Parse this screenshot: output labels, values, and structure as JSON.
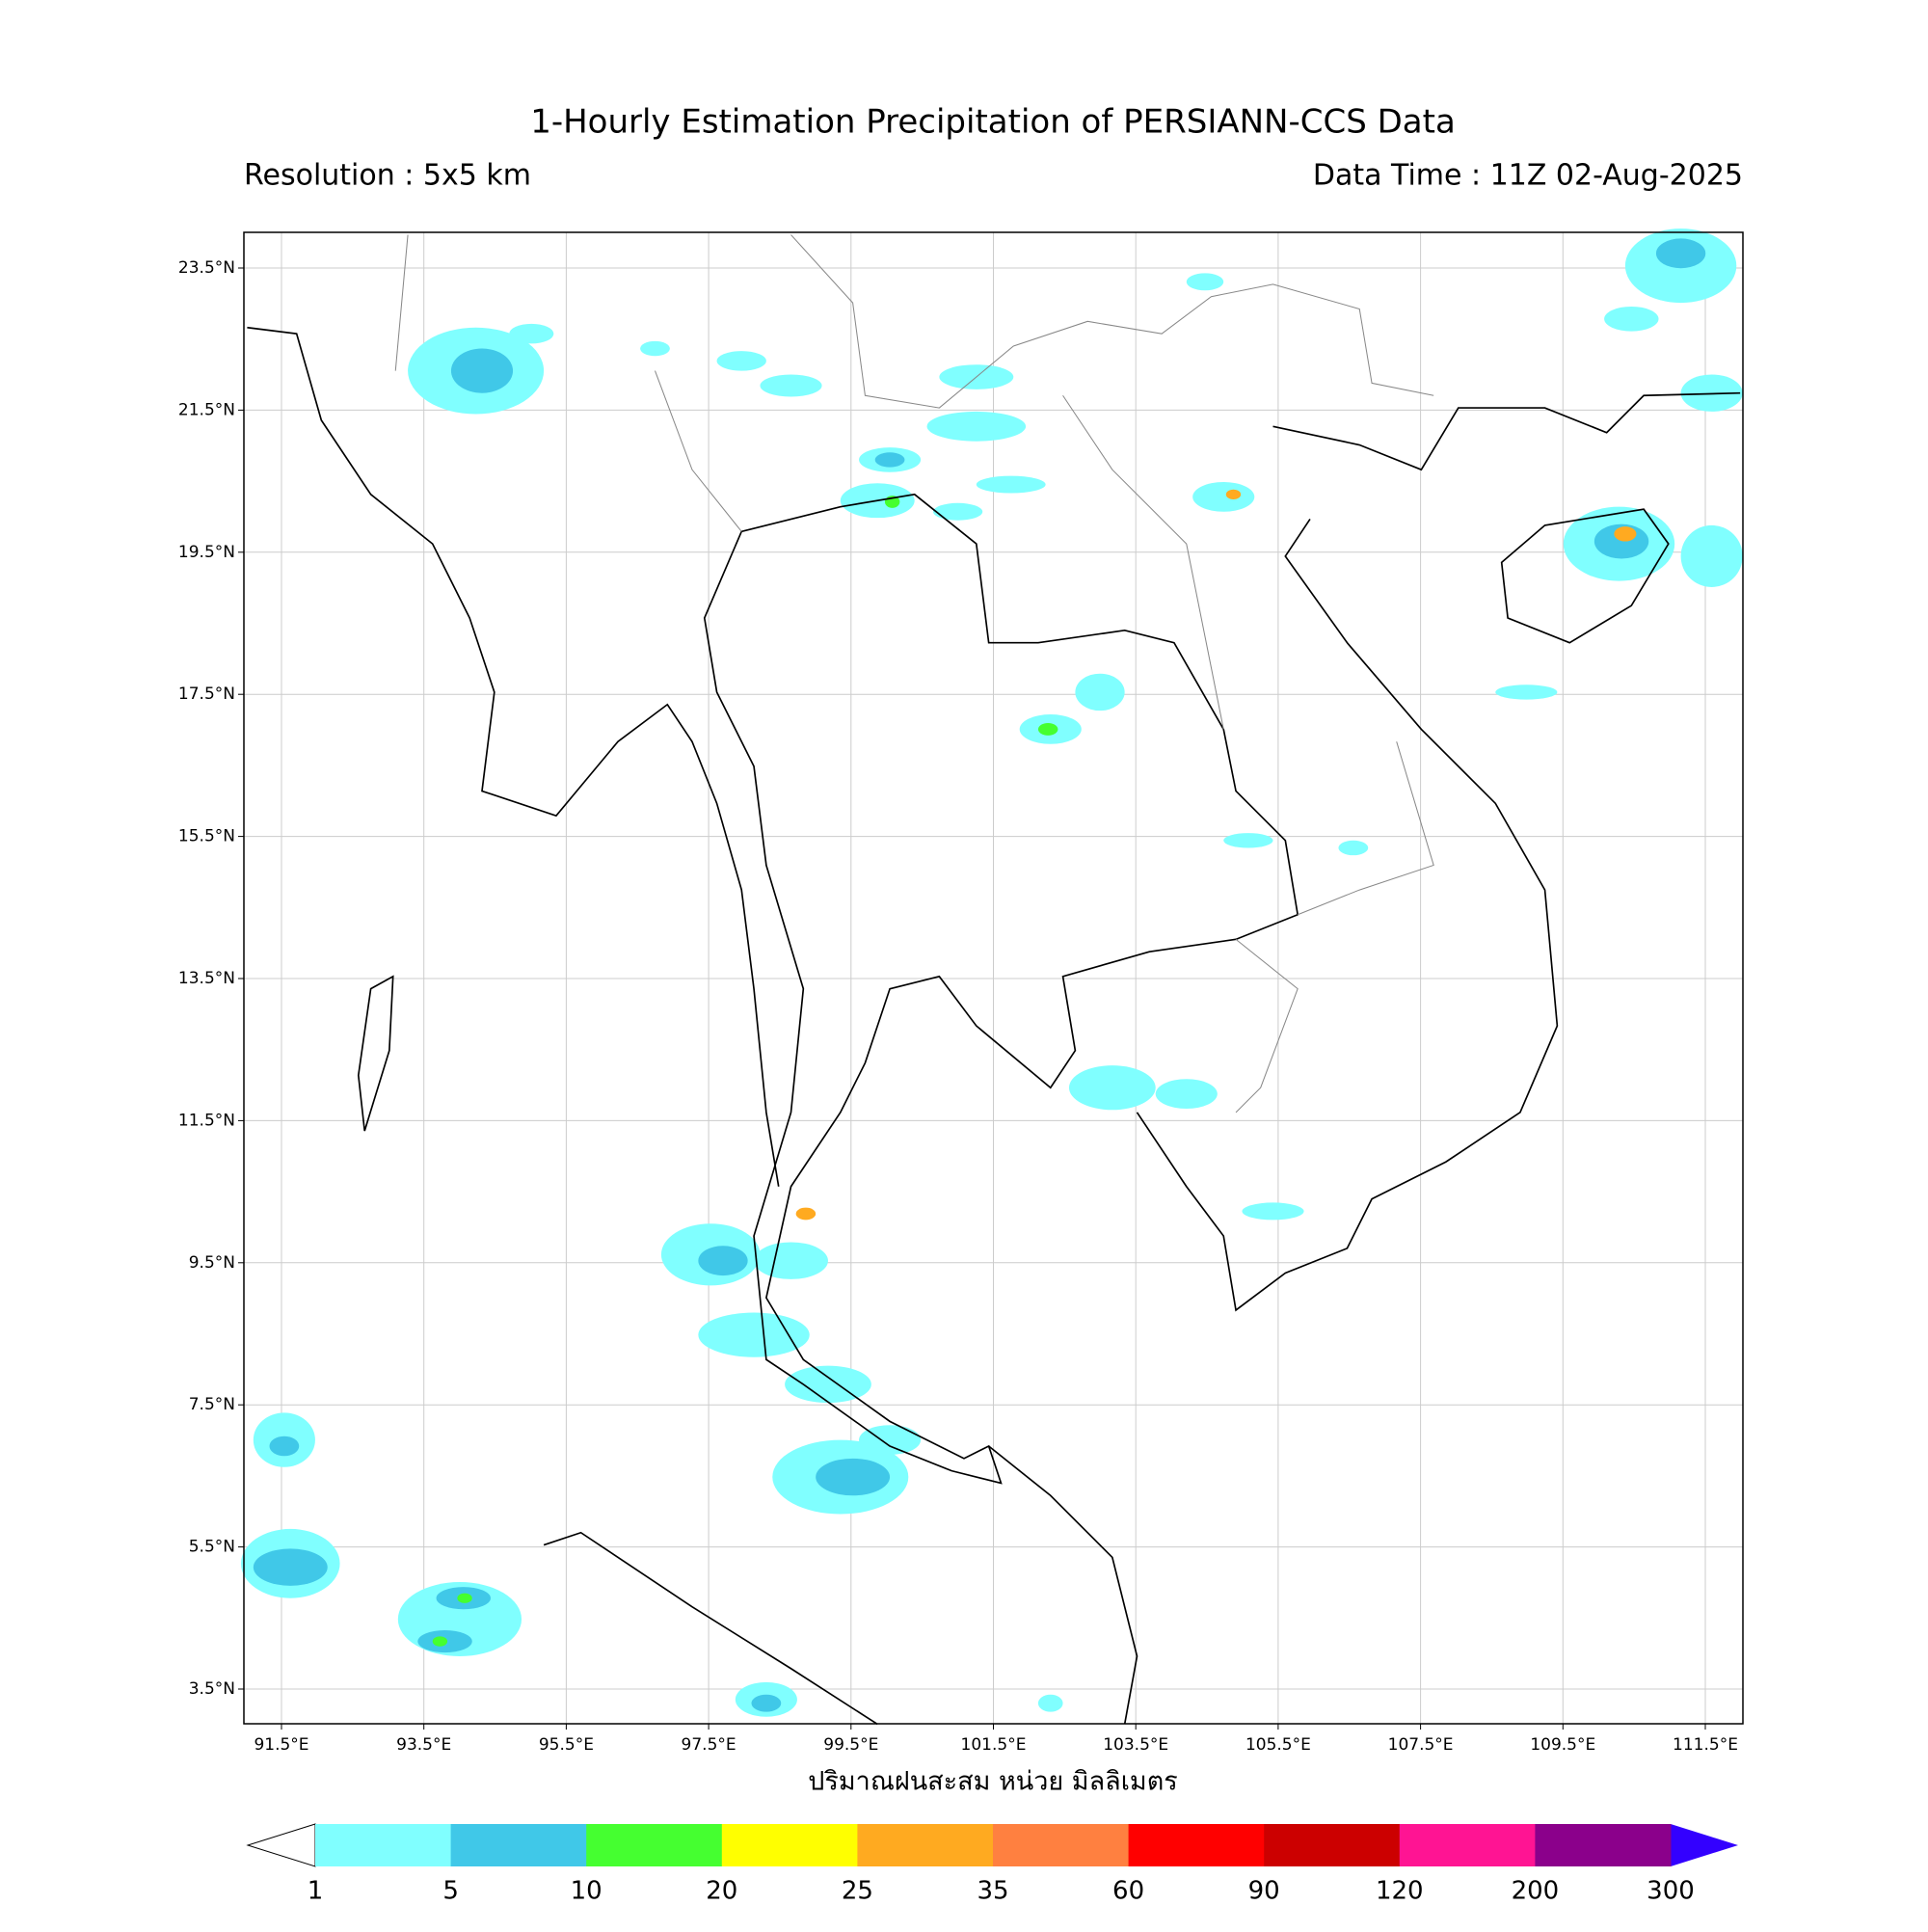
{
  "header": {
    "title": "1-Hourly Estimation Precipitation of PERSIANN-CCS Data",
    "resolution": "Resolution : 5x5 km",
    "data_time": "Data Time : 11Z 02-Aug-2025"
  },
  "map": {
    "lat_ticks": [
      {
        "value": 23.5,
        "label": "23.5°N"
      },
      {
        "value": 21.5,
        "label": "21.5°N"
      },
      {
        "value": 19.5,
        "label": "19.5°N"
      },
      {
        "value": 17.5,
        "label": "17.5°N"
      },
      {
        "value": 15.5,
        "label": "15.5°N"
      },
      {
        "value": 13.5,
        "label": "13.5°N"
      },
      {
        "value": 11.5,
        "label": "11.5°N"
      },
      {
        "value": 9.5,
        "label": "9.5°N"
      },
      {
        "value": 7.5,
        "label": "7.5°N"
      },
      {
        "value": 5.5,
        "label": "5.5°N"
      },
      {
        "value": 3.5,
        "label": "3.5°N"
      }
    ],
    "lon_ticks": [
      {
        "value": 91.5,
        "label": "91.5°E"
      },
      {
        "value": 93.5,
        "label": "93.5°E"
      },
      {
        "value": 95.5,
        "label": "95.5°E"
      },
      {
        "value": 97.5,
        "label": "97.5°E"
      },
      {
        "value": 99.5,
        "label": "99.5°E"
      },
      {
        "value": 101.5,
        "label": "101.5°E"
      },
      {
        "value": 103.5,
        "label": "103.5°E"
      },
      {
        "value": 105.5,
        "label": "105.5°E"
      },
      {
        "value": 107.5,
        "label": "107.5°E"
      },
      {
        "value": 109.5,
        "label": "109.5°E"
      },
      {
        "value": 111.5,
        "label": "111.5°E"
      }
    ],
    "x_label": "ปริมาณฝนสะสม หน่วย มิลลิเมตร",
    "grid": true
  },
  "colorbar": {
    "levels": [
      1,
      5,
      10,
      20,
      25,
      35,
      60,
      90,
      120,
      200,
      300
    ],
    "colors": [
      "#80ffff",
      "#40c8e8",
      "#45ff30",
      "#ffff00",
      "#ffaa20",
      "#ff8040",
      "#ff0000",
      "#cc0000",
      "#ff1493",
      "#8b008b"
    ],
    "under_color": "#ffffff",
    "over_color": "#3300ff"
  }
}
